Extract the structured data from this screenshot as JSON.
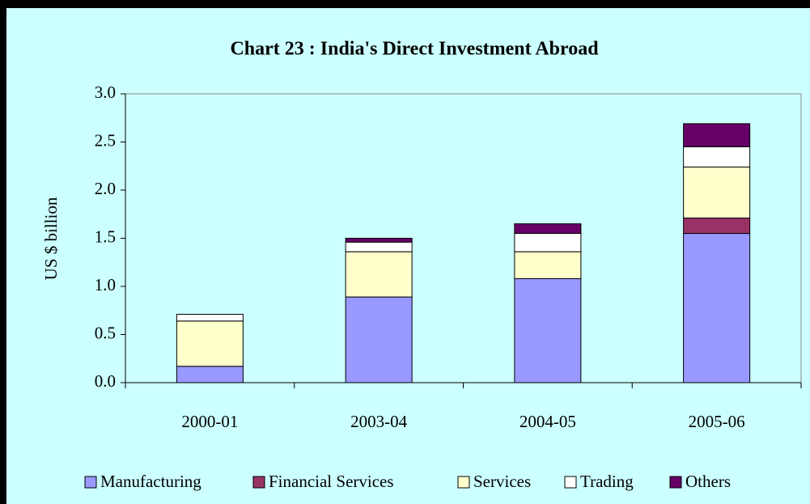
{
  "chart_data": {
    "type": "stacked_bar",
    "title": "Chart 23 : India's Direct Investment Abroad",
    "y_label": "US $ billion",
    "categories": [
      "2000-01",
      "2003-04",
      "2004-05",
      "2005-06"
    ],
    "series": [
      {
        "name": "Manufacturing",
        "color": "#9999ff",
        "values": [
          0.17,
          0.89,
          1.08,
          1.55
        ]
      },
      {
        "name": "Financial Services",
        "color": "#993366",
        "values": [
          0,
          0,
          0,
          0.16
        ]
      },
      {
        "name": "Services",
        "color": "#ffffcc",
        "values": [
          0.47,
          0.47,
          0.28,
          0.53
        ]
      },
      {
        "name": "Trading",
        "color": "#ffffff",
        "values": [
          0.07,
          0.1,
          0.19,
          0.21
        ]
      },
      {
        "name": "Others",
        "color": "#660066",
        "values": [
          0,
          0.04,
          0.1,
          0.24
        ]
      }
    ],
    "ylim": [
      0,
      3
    ],
    "yticks": [
      {
        "value": 0,
        "label": "0.0"
      },
      0.5,
      {
        "value": 1,
        "label": "1.0"
      },
      1.5,
      {
        "value": 2,
        "label": "2.0"
      },
      2.5,
      {
        "value": 3,
        "label": "3.0"
      }
    ],
    "legend": "bottom"
  }
}
